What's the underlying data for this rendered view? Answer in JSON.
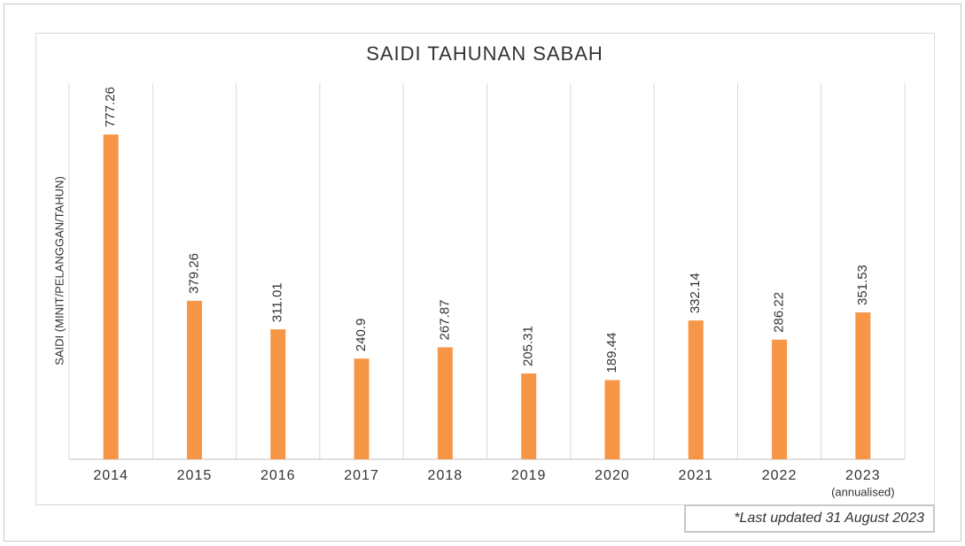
{
  "chart_data": {
    "type": "bar",
    "title": "SAIDI TAHUNAN SABAH",
    "y_label": "SAIDI (MINIT/PELANGGAN/TAHUN)",
    "categories": [
      "2014",
      "2015",
      "2016",
      "2017",
      "2018",
      "2019",
      "2020",
      "2021",
      "2022",
      "2023"
    ],
    "category_note": "(annualised)",
    "values": [
      777.26,
      379.26,
      311.01,
      240.9,
      267.87,
      205.31,
      189.44,
      332.14,
      286.22,
      351.53
    ],
    "color": "#f79646",
    "ylim": [
      0,
      900
    ],
    "grid": true,
    "footnote": "*Last updated 31 August 2023"
  }
}
